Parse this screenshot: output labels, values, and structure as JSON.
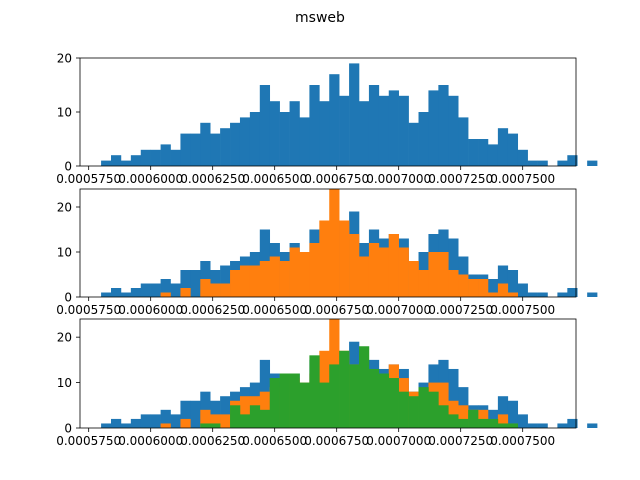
{
  "figure": {
    "title": "msweb"
  },
  "colors": {
    "blue": "#1f77b4",
    "orange": "#ff7f0e",
    "green": "#2ca02c",
    "axis": "#000000"
  },
  "chart_data": [
    {
      "type": "bar",
      "title": "",
      "xlabel": "",
      "ylabel": "",
      "xlim": [
        0.0005715,
        0.0007715
      ],
      "ylim": [
        0,
        20
      ],
      "xticks": [
        "0.000575",
        "0.000600",
        "0.000625",
        "0.000650",
        "0.000675",
        "0.000700",
        "0.000725",
        "0.000750"
      ],
      "yticks": [
        "0",
        "10",
        "20"
      ],
      "bins": {
        "start": 0.00058,
        "width": 4e-06,
        "count": 50
      },
      "series": [
        {
          "color": "#1f77b4",
          "values": [
            1,
            2,
            1,
            2,
            3,
            3,
            4,
            3,
            6,
            6,
            8,
            6,
            7,
            8,
            9,
            10,
            15,
            12,
            10,
            12,
            9,
            15,
            12,
            17,
            13,
            19,
            12,
            15,
            13,
            14,
            13,
            8,
            10,
            14,
            15,
            13,
            9,
            5,
            5,
            4,
            7,
            6,
            3,
            1,
            1,
            0,
            1,
            2,
            0,
            1
          ]
        }
      ]
    },
    {
      "type": "bar",
      "title": "",
      "xlabel": "",
      "ylabel": "",
      "xlim": [
        0.0005715,
        0.0007715
      ],
      "ylim": [
        0,
        24
      ],
      "xticks": [
        "0.000575",
        "0.000600",
        "0.000625",
        "0.000650",
        "0.000675",
        "0.000700",
        "0.000725",
        "0.000750"
      ],
      "yticks": [
        "0",
        "10",
        "20"
      ],
      "bins": {
        "start": 0.00058,
        "width": 4e-06,
        "count": 50
      },
      "series": [
        {
          "color": "#1f77b4",
          "values": [
            1,
            2,
            1,
            2,
            3,
            3,
            4,
            3,
            6,
            6,
            8,
            6,
            7,
            8,
            9,
            10,
            15,
            12,
            10,
            12,
            9,
            15,
            12,
            17,
            13,
            19,
            12,
            15,
            13,
            14,
            13,
            8,
            10,
            14,
            15,
            13,
            9,
            5,
            5,
            4,
            7,
            6,
            3,
            1,
            1,
            0,
            1,
            2,
            0,
            1
          ]
        },
        {
          "color": "#ff7f0e",
          "values": [
            0,
            0,
            0,
            0,
            0,
            0,
            1,
            0,
            2,
            0,
            4,
            3,
            3,
            6,
            7,
            7,
            8,
            9,
            8,
            11,
            10,
            12,
            17,
            24,
            17,
            14,
            9,
            12,
            11,
            14,
            11,
            8,
            6,
            10,
            10,
            6,
            5,
            4,
            4,
            1,
            3,
            1,
            0,
            0,
            0,
            0,
            0,
            0,
            0,
            0
          ]
        }
      ]
    },
    {
      "type": "bar",
      "title": "",
      "xlabel": "",
      "ylabel": "",
      "xlim": [
        0.0005715,
        0.0007715
      ],
      "ylim": [
        0,
        24
      ],
      "xticks": [
        "0.000575",
        "0.000600",
        "0.000625",
        "0.000650",
        "0.000675",
        "0.000700",
        "0.000725",
        "0.000750"
      ],
      "yticks": [
        "0",
        "10",
        "20"
      ],
      "bins": {
        "start": 0.00058,
        "width": 4e-06,
        "count": 50
      },
      "series": [
        {
          "color": "#1f77b4",
          "values": [
            1,
            2,
            1,
            2,
            3,
            3,
            4,
            3,
            6,
            6,
            8,
            6,
            7,
            8,
            9,
            10,
            15,
            12,
            10,
            12,
            9,
            15,
            12,
            17,
            13,
            19,
            12,
            15,
            13,
            14,
            13,
            8,
            10,
            14,
            15,
            13,
            9,
            5,
            5,
            4,
            7,
            6,
            3,
            1,
            1,
            0,
            1,
            2,
            0,
            1
          ]
        },
        {
          "color": "#ff7f0e",
          "values": [
            0,
            0,
            0,
            0,
            0,
            0,
            1,
            0,
            2,
            0,
            4,
            3,
            3,
            6,
            7,
            7,
            8,
            9,
            8,
            11,
            10,
            12,
            17,
            24,
            17,
            14,
            9,
            12,
            11,
            14,
            11,
            8,
            6,
            10,
            10,
            6,
            5,
            4,
            4,
            1,
            3,
            1,
            0,
            0,
            0,
            0,
            0,
            0,
            0,
            0
          ]
        },
        {
          "color": "#2ca02c",
          "values": [
            0,
            0,
            0,
            0,
            0,
            0,
            0,
            0,
            0,
            0,
            1,
            1,
            0,
            5,
            3,
            5,
            4,
            11,
            12,
            12,
            10,
            16,
            10,
            14,
            17,
            14,
            18,
            13,
            12,
            11,
            8,
            7,
            9,
            8,
            5,
            3,
            2,
            4,
            2,
            2,
            1,
            1,
            0,
            0,
            0,
            0,
            0,
            0,
            0,
            0
          ]
        }
      ]
    }
  ]
}
